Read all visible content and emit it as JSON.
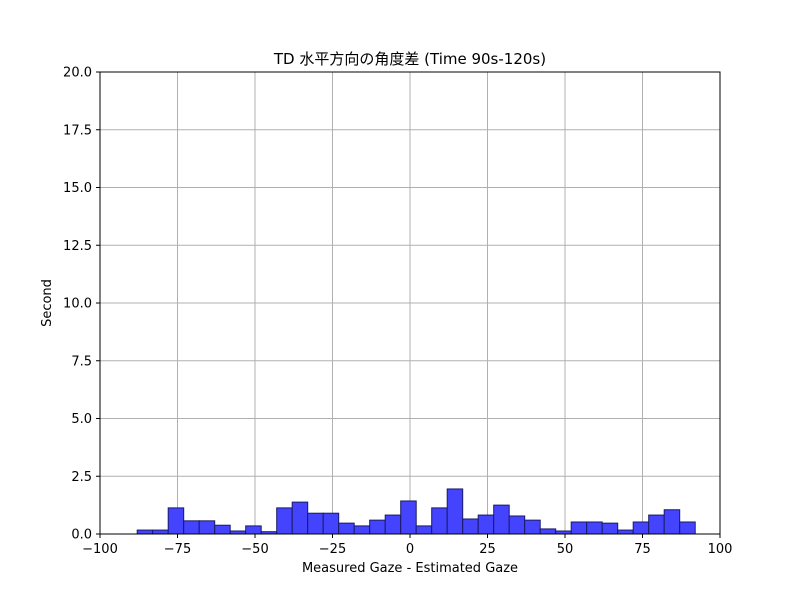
{
  "chart_data": {
    "type": "bar",
    "title": "TD 水平方向の角度差 (Time 90s-120s)",
    "xlabel": "Measured Gaze - Estimated Gaze",
    "ylabel": "Second",
    "xlim": [
      -100,
      100
    ],
    "ylim": [
      0,
      20
    ],
    "xticks": [
      "−100",
      "−75",
      "−50",
      "−25",
      "0",
      "25",
      "50",
      "75",
      "100"
    ],
    "yticks": [
      "0.0",
      "2.5",
      "5.0",
      "7.5",
      "10.0",
      "12.5",
      "15.0",
      "17.5",
      "20.0"
    ],
    "grid": true,
    "bar_color": "#4444ff",
    "bars": [
      {
        "x0": -88,
        "x1": -83,
        "value": 0.17
      },
      {
        "x0": -83,
        "x1": -78,
        "value": 0.17
      },
      {
        "x0": -78,
        "x1": -73,
        "value": 1.13
      },
      {
        "x0": -73,
        "x1": -68,
        "value": 0.57
      },
      {
        "x0": -68,
        "x1": -63,
        "value": 0.57
      },
      {
        "x0": -63,
        "x1": -58,
        "value": 0.38
      },
      {
        "x0": -58,
        "x1": -53,
        "value": 0.13
      },
      {
        "x0": -53,
        "x1": -48,
        "value": 0.35
      },
      {
        "x0": -48,
        "x1": -43,
        "value": 0.1
      },
      {
        "x0": -43,
        "x1": -38,
        "value": 1.13
      },
      {
        "x0": -38,
        "x1": -33,
        "value": 1.38
      },
      {
        "x0": -33,
        "x1": -28,
        "value": 0.9
      },
      {
        "x0": -28,
        "x1": -23,
        "value": 0.9
      },
      {
        "x0": -23,
        "x1": -18,
        "value": 0.47
      },
      {
        "x0": -18,
        "x1": -13,
        "value": 0.35
      },
      {
        "x0": -13,
        "x1": -8,
        "value": 0.6
      },
      {
        "x0": -8,
        "x1": -3,
        "value": 0.82
      },
      {
        "x0": -3,
        "x1": 2,
        "value": 1.43
      },
      {
        "x0": 2,
        "x1": 7,
        "value": 0.35
      },
      {
        "x0": 7,
        "x1": 12,
        "value": 1.13
      },
      {
        "x0": 12,
        "x1": 17,
        "value": 1.95
      },
      {
        "x0": 17,
        "x1": 22,
        "value": 0.65
      },
      {
        "x0": 22,
        "x1": 27,
        "value": 0.82
      },
      {
        "x0": 27,
        "x1": 32,
        "value": 1.25
      },
      {
        "x0": 32,
        "x1": 37,
        "value": 0.78
      },
      {
        "x0": 37,
        "x1": 42,
        "value": 0.6
      },
      {
        "x0": 42,
        "x1": 47,
        "value": 0.22
      },
      {
        "x0": 47,
        "x1": 52,
        "value": 0.13
      },
      {
        "x0": 52,
        "x1": 57,
        "value": 0.52
      },
      {
        "x0": 57,
        "x1": 62,
        "value": 0.52
      },
      {
        "x0": 62,
        "x1": 67,
        "value": 0.47
      },
      {
        "x0": 67,
        "x1": 72,
        "value": 0.17
      },
      {
        "x0": 72,
        "x1": 77,
        "value": 0.52
      },
      {
        "x0": 77,
        "x1": 82,
        "value": 0.82
      },
      {
        "x0": 82,
        "x1": 87,
        "value": 1.05
      },
      {
        "x0": 87,
        "x1": 92,
        "value": 0.52
      }
    ]
  }
}
